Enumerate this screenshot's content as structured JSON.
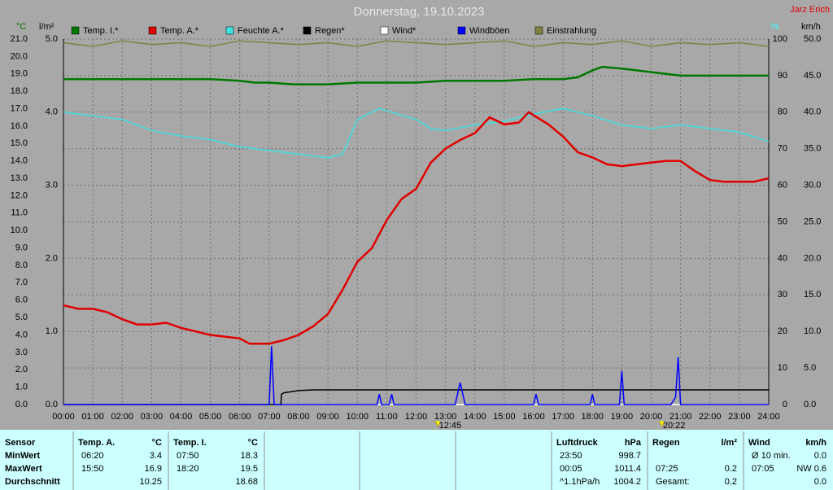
{
  "chart_data": {
    "type": "line",
    "title": "Donnerstag, 19.10.2023",
    "author": "Jarz Erich",
    "ylabel": "°C",
    "y3label": "l/m²",
    "y4label": "%",
    "y2label": "km/h",
    "xlim": [
      0,
      24
    ],
    "xticks": [
      {
        "value": 0,
        "label": "00:00"
      },
      {
        "value": 1,
        "label": "01:00"
      },
      {
        "value": 2,
        "label": "02:00"
      },
      {
        "value": 3,
        "label": "03:00"
      },
      {
        "value": 4,
        "label": "04:00"
      },
      {
        "value": 5,
        "label": "05:00"
      },
      {
        "value": 6,
        "label": "06:00"
      },
      {
        "value": 7,
        "label": "07:00"
      },
      {
        "value": 8,
        "label": "08:00"
      },
      {
        "value": 9,
        "label": "09:00"
      },
      {
        "value": 10,
        "label": "10:00"
      },
      {
        "value": 11,
        "label": "11:00"
      },
      {
        "value": 12,
        "label": "12:00"
      },
      {
        "value": 13,
        "label": "13:00"
      },
      {
        "value": 14,
        "label": "14:00"
      },
      {
        "value": 15,
        "label": "15:00"
      },
      {
        "value": 16,
        "label": "16:00"
      },
      {
        "value": 17,
        "label": "17:00"
      },
      {
        "value": 18,
        "label": "18:00"
      },
      {
        "value": 19,
        "label": "19:00"
      },
      {
        "value": 20,
        "label": "20:00"
      },
      {
        "value": 21,
        "label": "21:00"
      },
      {
        "value": 22,
        "label": "22:00"
      },
      {
        "value": 23,
        "label": "23:00"
      },
      {
        "value": 24,
        "label": "24:00"
      }
    ],
    "ylim": [
      0,
      21
    ],
    "yticks": [
      {
        "value": 0,
        "label": "0.0"
      },
      {
        "value": 1,
        "label": "1.0"
      },
      {
        "value": 2,
        "label": "2.0"
      },
      {
        "value": 3,
        "label": "3.0"
      },
      {
        "value": 4,
        "label": "4.0"
      },
      {
        "value": 5,
        "label": "5.0"
      },
      {
        "value": 6,
        "label": "6.0"
      },
      {
        "value": 7,
        "label": "7.0"
      },
      {
        "value": 8,
        "label": "8.0"
      },
      {
        "value": 9,
        "label": "9.0"
      },
      {
        "value": 10,
        "label": "10.0"
      },
      {
        "value": 11,
        "label": "11.0"
      },
      {
        "value": 12,
        "label": "12.0"
      },
      {
        "value": 13,
        "label": "13.0"
      },
      {
        "value": 14,
        "label": "14.0"
      },
      {
        "value": 15,
        "label": "15.0"
      },
      {
        "value": 16,
        "label": "16.0"
      },
      {
        "value": 17,
        "label": "17.0"
      },
      {
        "value": 18,
        "label": "18.0"
      },
      {
        "value": 19,
        "label": "19.0"
      },
      {
        "value": 20,
        "label": "20.0"
      },
      {
        "value": 21,
        "label": "21.0"
      }
    ],
    "y3lim": [
      0,
      5
    ],
    "y3ticks": [
      {
        "value": 0,
        "label": "0.0"
      },
      {
        "value": 1,
        "label": "1.0"
      },
      {
        "value": 2,
        "label": "2.0"
      },
      {
        "value": 3,
        "label": "3.0"
      },
      {
        "value": 4,
        "label": "4.0"
      },
      {
        "value": 5,
        "label": "5.0"
      }
    ],
    "y4lim": [
      0,
      100
    ],
    "y4ticks": [
      0,
      10,
      20,
      30,
      40,
      50,
      60,
      70,
      80,
      90,
      100
    ],
    "y2lim": [
      0,
      50
    ],
    "y2ticks": [
      {
        "value": 0,
        "label": "0.0"
      },
      {
        "value": 5,
        "label": "5.0"
      },
      {
        "value": 10,
        "label": "10.0"
      },
      {
        "value": 15,
        "label": "15.0"
      },
      {
        "value": 20,
        "label": "20.0"
      },
      {
        "value": 25,
        "label": "25.0"
      },
      {
        "value": 30,
        "label": "30.0"
      },
      {
        "value": 35,
        "label": "35.0"
      },
      {
        "value": 40,
        "label": "40.0"
      },
      {
        "value": 45,
        "label": "45.0"
      },
      {
        "value": 50,
        "label": "50.0"
      }
    ],
    "grid": true,
    "series": [
      {
        "name": "Temp. I.*",
        "color": "#007800",
        "legend_text_color": "#000000",
        "axis": "y",
        "x": [
          0,
          1,
          2,
          3,
          4,
          5,
          6,
          6.5,
          7,
          7.83,
          9,
          10,
          11,
          12,
          13,
          14,
          15,
          16,
          17,
          17.5,
          18,
          18.33,
          19,
          20,
          21,
          22,
          23,
          24
        ],
        "values": [
          18.7,
          18.7,
          18.7,
          18.7,
          18.7,
          18.7,
          18.6,
          18.5,
          18.5,
          18.4,
          18.4,
          18.5,
          18.5,
          18.5,
          18.6,
          18.6,
          18.6,
          18.7,
          18.7,
          18.8,
          19.2,
          19.4,
          19.3,
          19.1,
          18.9,
          18.9,
          18.9,
          18.9
        ]
      },
      {
        "name": "Temp. A.*",
        "color": "#e00000",
        "legend_text_color": "#000000",
        "axis": "y",
        "x": [
          0,
          0.5,
          1,
          1.5,
          2,
          2.5,
          3,
          3.5,
          4,
          4.5,
          5,
          5.5,
          6,
          6.33,
          7,
          7.5,
          8,
          8.5,
          9,
          9.5,
          10,
          10.5,
          11,
          11.5,
          12,
          12.5,
          13,
          13.5,
          14,
          14.5,
          15,
          15.5,
          15.83,
          16.5,
          17,
          17.5,
          18,
          18.5,
          19,
          19.5,
          20,
          20.5,
          21,
          21.5,
          22,
          22.5,
          23,
          23.5,
          24
        ],
        "values": [
          5.7,
          5.5,
          5.5,
          5.3,
          4.9,
          4.6,
          4.6,
          4.7,
          4.4,
          4.2,
          4.0,
          3.9,
          3.8,
          3.5,
          3.5,
          3.7,
          4.0,
          4.5,
          5.2,
          6.6,
          8.2,
          9.0,
          10.6,
          11.8,
          12.4,
          13.9,
          14.7,
          15.2,
          15.6,
          16.5,
          16.1,
          16.2,
          16.8,
          16.1,
          15.4,
          14.5,
          14.2,
          13.8,
          13.7,
          13.8,
          13.9,
          14.0,
          14.0,
          13.4,
          12.9,
          12.8,
          12.8,
          12.8,
          13.0
        ]
      },
      {
        "name": "Feuchte A.*",
        "color": "#40e0e0",
        "legend_text_color": "#40ffff",
        "axis": "y4",
        "x": [
          0,
          1,
          2,
          3,
          4,
          5,
          6,
          7,
          8,
          9,
          9.5,
          10,
          10.75,
          12,
          12.5,
          13,
          14,
          15,
          16,
          17,
          18,
          19,
          20,
          21,
          22,
          23,
          24
        ],
        "values": [
          80,
          79,
          78,
          75,
          73.5,
          72.5,
          70.5,
          69.5,
          68.5,
          67.5,
          68.5,
          78,
          81,
          78,
          75.5,
          75,
          76.5,
          77.5,
          79.5,
          81,
          79,
          76.5,
          75.5,
          76.5,
          75.5,
          74.5,
          72
        ]
      },
      {
        "name": "Regen*",
        "color": "#000000",
        "legend_text_color": "#000000",
        "axis": "y3",
        "x": [
          0,
          7.4,
          7.42,
          7.5,
          8,
          8.5,
          24
        ],
        "values": [
          0,
          0,
          0.14,
          0.16,
          0.19,
          0.2,
          0.2
        ]
      },
      {
        "name": "Wind*",
        "color": "#ffffff",
        "legend_text_color": "#000000",
        "axis": "y2",
        "x": [
          0,
          24
        ],
        "values": [
          0,
          0
        ]
      },
      {
        "name": "Windböen",
        "color": "#0000ff",
        "legend_text_color": "#000000",
        "axis": "y2",
        "x": [
          0,
          7.0,
          7.08,
          7.17,
          10.67,
          10.75,
          10.83,
          11.08,
          11.17,
          11.25,
          13.33,
          13.5,
          13.67,
          16,
          16.08,
          16.17,
          17.92,
          18,
          18.08,
          18.92,
          19,
          19.08,
          20.67,
          20.83,
          20.92,
          21,
          24
        ],
        "values": [
          0,
          0,
          8,
          0,
          0,
          1.4,
          0,
          0,
          1.4,
          0,
          0,
          3,
          0,
          0,
          1.4,
          0,
          0,
          1.4,
          0,
          0,
          4.6,
          0,
          0,
          1,
          6.5,
          0,
          0
        ]
      },
      {
        "name": "Einstrahlung",
        "color": "#808040",
        "legend_text_color": "#40ffff",
        "axis": "y4",
        "x": [
          0,
          1,
          2,
          3,
          4,
          5,
          6,
          7,
          8,
          9,
          10,
          11,
          12,
          13,
          14,
          15,
          16,
          17,
          18,
          19,
          20,
          21,
          22,
          23,
          24
        ],
        "values": [
          99,
          98,
          99.5,
          98.5,
          99,
          98,
          99.5,
          99,
          98.5,
          99,
          98,
          99.5,
          99,
          98.5,
          99,
          99.5,
          98,
          99,
          98.5,
          99.5,
          98,
          99,
          98.5,
          99,
          98
        ]
      }
    ],
    "annotations": [
      {
        "x": 12.75,
        "text": "12:45"
      },
      {
        "x": 20.37,
        "text": "20:22"
      }
    ]
  },
  "table": {
    "header_label": "Sensor",
    "row_labels": [
      "MinWert",
      "MaxWert",
      "Durchschnitt"
    ],
    "blocks": [
      {
        "name": "Temp. A.",
        "unit": "°C",
        "rows": {
          "min": [
            "06:20",
            "3.4"
          ],
          "max": [
            "15:50",
            "16.9"
          ],
          "avg": [
            "10.25"
          ]
        }
      },
      {
        "name": "Temp. I.",
        "unit": "°C",
        "rows": {
          "min": [
            "07:50",
            "18.3"
          ],
          "max": [
            "18:20",
            "19.5"
          ],
          "avg": [
            "18.68"
          ]
        }
      },
      {
        "name": "Luftdruck",
        "unit": "hPa",
        "rows": {
          "min": [
            "23:50",
            "998.7"
          ],
          "max": [
            "00:05",
            "1011.4"
          ],
          "avg": [
            "^1.1hPa/h",
            "1004.2"
          ]
        }
      },
      {
        "name": "Regen",
        "unit": "l/m²",
        "rows": {
          "max": [
            "07:25",
            "0.2"
          ],
          "avg": [
            "Gesamt:",
            "0.2"
          ]
        }
      },
      {
        "name": "Wind",
        "unit": "km/h",
        "rows": {
          "min": [
            "Ø 10 min.",
            "0.0"
          ],
          "max": [
            "07:05",
            "NW 0.6"
          ],
          "avg": [
            "0.0"
          ]
        }
      }
    ]
  }
}
